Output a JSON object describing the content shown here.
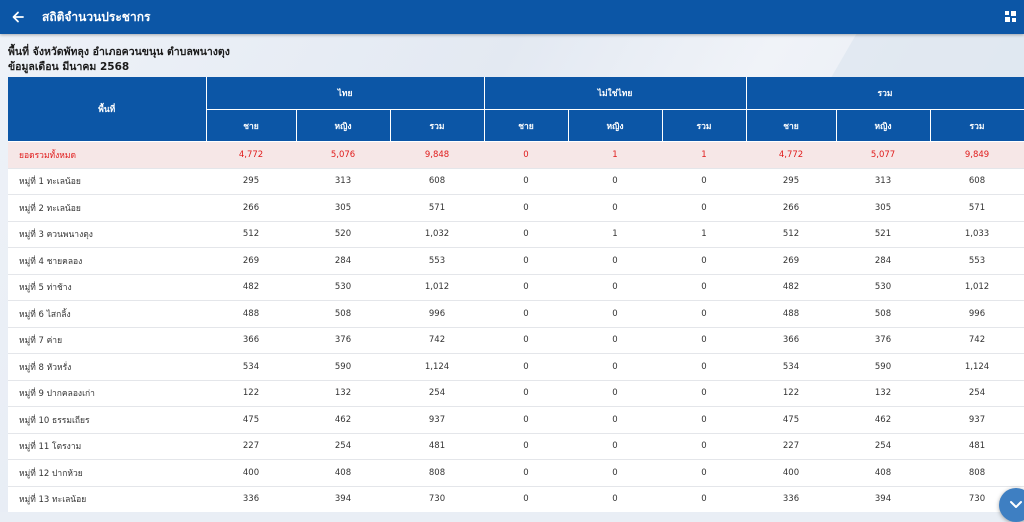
{
  "header": {
    "title": "สถิติจำนวนประชากร",
    "back_icon": "arrow-left-icon",
    "menu_icon": "grid-icon"
  },
  "info": {
    "area_line": "พื้นที่ จังหวัดพัทลุง อำเภอควนขนุน ตำบลพนางตุง",
    "date_line": "ข้อมูลเดือน มีนาคม 2568"
  },
  "table": {
    "area_header": "พื้นที่",
    "group_headers": [
      "ไทย",
      "ไม่ใช่ไทย",
      "รวม"
    ],
    "sub_headers": [
      "ชาย",
      "หญิง",
      "รวม",
      "ชาย",
      "หญิง",
      "รวม",
      "ชาย",
      "หญิง",
      "รวม"
    ],
    "total": {
      "area": "ยอดรวมทั้งหมด",
      "values": [
        "4,772",
        "5,076",
        "9,848",
        "0",
        "1",
        "1",
        "4,772",
        "5,077",
        "9,849"
      ]
    },
    "rows": [
      {
        "area": "หมู่ที่ 1 ทะเลน้อย",
        "values": [
          "295",
          "313",
          "608",
          "0",
          "0",
          "0",
          "295",
          "313",
          "608"
        ]
      },
      {
        "area": "หมู่ที่ 2 ทะเลน้อย",
        "values": [
          "266",
          "305",
          "571",
          "0",
          "0",
          "0",
          "266",
          "305",
          "571"
        ]
      },
      {
        "area": "หมู่ที่ 3 ควนพนางตุง",
        "values": [
          "512",
          "520",
          "1,032",
          "0",
          "1",
          "1",
          "512",
          "521",
          "1,033"
        ]
      },
      {
        "area": "หมู่ที่ 4 ชายคลอง",
        "values": [
          "269",
          "284",
          "553",
          "0",
          "0",
          "0",
          "269",
          "284",
          "553"
        ]
      },
      {
        "area": "หมู่ที่ 5 ท่าช้าง",
        "values": [
          "482",
          "530",
          "1,012",
          "0",
          "0",
          "0",
          "482",
          "530",
          "1,012"
        ]
      },
      {
        "area": "หมู่ที่ 6 ไสกลิ้ง",
        "values": [
          "488",
          "508",
          "996",
          "0",
          "0",
          "0",
          "488",
          "508",
          "996"
        ]
      },
      {
        "area": "หมู่ที่ 7 ค่าย",
        "values": [
          "366",
          "376",
          "742",
          "0",
          "0",
          "0",
          "366",
          "376",
          "742"
        ]
      },
      {
        "area": "หมู่ที่ 8 หัวหรั่ง",
        "values": [
          "534",
          "590",
          "1,124",
          "0",
          "0",
          "0",
          "534",
          "590",
          "1,124"
        ]
      },
      {
        "area": "หมู่ที่ 9 ปากคลองเก่า",
        "values": [
          "122",
          "132",
          "254",
          "0",
          "0",
          "0",
          "122",
          "132",
          "254"
        ]
      },
      {
        "area": "หมู่ที่ 10 ธรรมเถียร",
        "values": [
          "475",
          "462",
          "937",
          "0",
          "0",
          "0",
          "475",
          "462",
          "937"
        ]
      },
      {
        "area": "หมู่ที่ 11 โตรงาม",
        "values": [
          "227",
          "254",
          "481",
          "0",
          "0",
          "0",
          "227",
          "254",
          "481"
        ]
      },
      {
        "area": "หมู่ที่ 12 ปากห้วย",
        "values": [
          "400",
          "408",
          "808",
          "0",
          "0",
          "0",
          "400",
          "408",
          "808"
        ]
      },
      {
        "area": "หมู่ที่ 13 ทะเลน้อย",
        "values": [
          "336",
          "394",
          "730",
          "0",
          "0",
          "0",
          "336",
          "394",
          "730"
        ]
      }
    ]
  },
  "fab_icon": "chevron-down-icon",
  "colors": {
    "primary": "#0c56a6",
    "total_text": "#e01b1b",
    "total_row_bg": "#f6e7e7",
    "fab": "#3e7fc2"
  }
}
